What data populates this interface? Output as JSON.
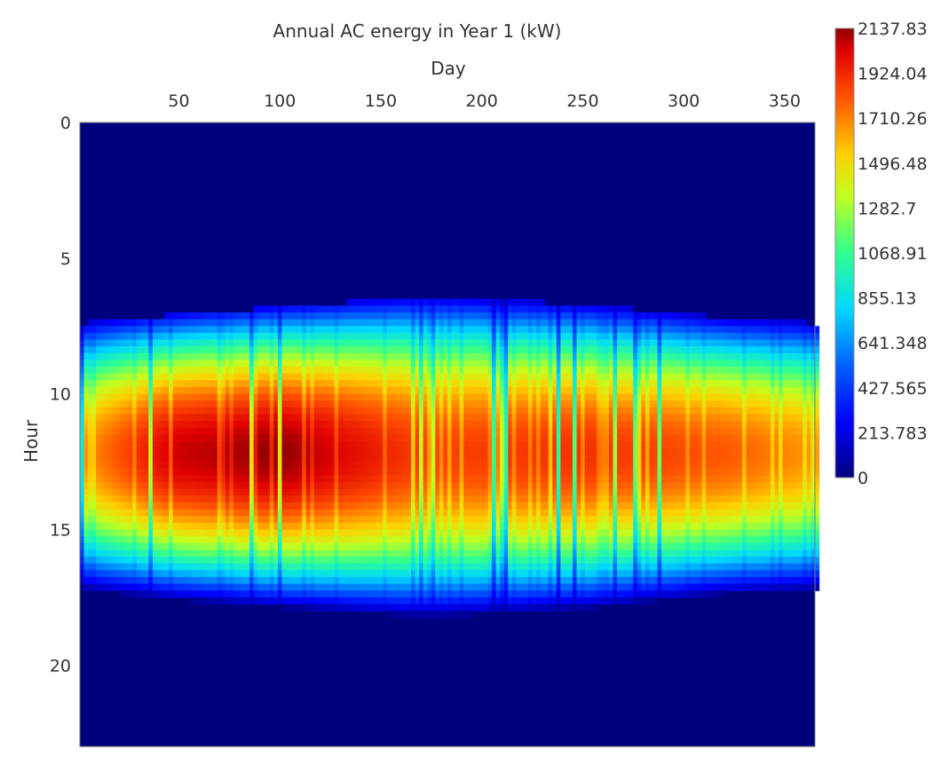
{
  "chart_data": {
    "type": "heatmap",
    "title": "Annual AC energy in Year 1 (kW)",
    "xlabel": "Day",
    "ylabel": "Hour",
    "x_axis_position": "top",
    "y_axis_inverted": true,
    "xlim": [
      1,
      365
    ],
    "ylim": [
      0,
      23
    ],
    "x_ticks": [
      50,
      100,
      150,
      200,
      250,
      300,
      350
    ],
    "y_ticks": [
      0,
      5,
      10,
      15,
      20
    ],
    "colorbar": {
      "ticks": [
        "2137.83",
        "1924.04",
        "1710.26",
        "1496.48",
        "1282.7",
        "1068.91",
        "855.13",
        "641.348",
        "427.565",
        "213.783",
        "0"
      ],
      "min": 0,
      "max": 2137.83,
      "colormap": "jet",
      "placement": "right"
    },
    "series_summary": {
      "daylight_hours_by_day": [
        {
          "day": 1,
          "sunrise": 7.4,
          "sunset": 17.5,
          "peak": 1650
        },
        {
          "day": 45,
          "sunrise": 7.1,
          "sunset": 17.9,
          "peak": 2050
        },
        {
          "day": 100,
          "sunrise": 6.8,
          "sunset": 18.2,
          "peak": 2137.83
        },
        {
          "day": 172,
          "sunrise": 6.4,
          "sunset": 18.5,
          "peak": 1850
        },
        {
          "day": 250,
          "sunrise": 6.7,
          "sunset": 18.2,
          "peak": 1900
        },
        {
          "day": 320,
          "sunrise": 7.2,
          "sunset": 17.6,
          "peak": 1800
        },
        {
          "day": 365,
          "sunrise": 7.4,
          "sunset": 17.5,
          "peak": 1650
        }
      ],
      "peak_hour": 12.2
    },
    "grid": false
  }
}
